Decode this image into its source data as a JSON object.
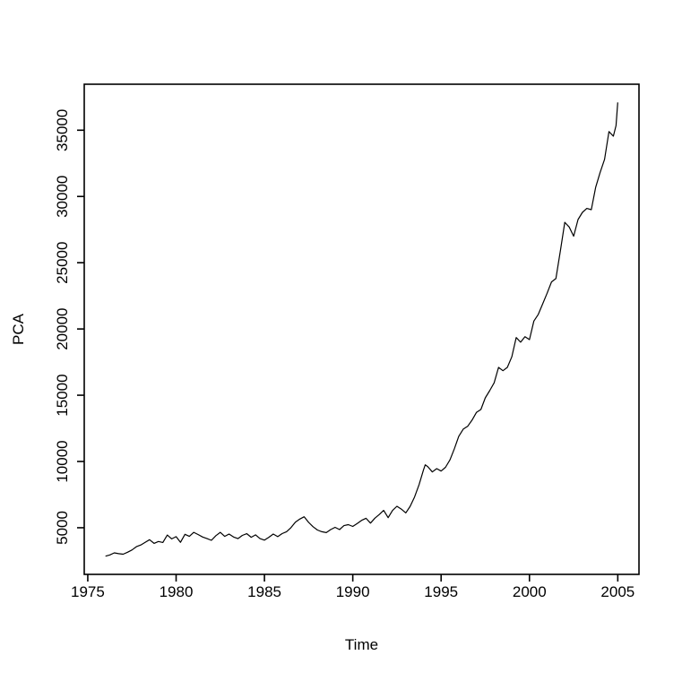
{
  "figure": {
    "background": "#ffffff",
    "line_color": "#000000",
    "axis_color": "#000000",
    "text_color": "#000000"
  },
  "chart_data": {
    "type": "line",
    "title": "",
    "xlabel": "Time",
    "ylabel": "PCA",
    "xlim": [
      1974.8,
      2006.2
    ],
    "ylim": [
      1480,
      38470
    ],
    "xticks": [
      1975,
      1980,
      1985,
      1990,
      1995,
      2000,
      2005
    ],
    "yticks": [
      5000,
      10000,
      15000,
      20000,
      25000,
      30000,
      35000
    ],
    "grid": false,
    "legend_position": "none",
    "series": [
      {
        "name": "PCA",
        "x": [
          1976.0,
          1976.25,
          1976.5,
          1976.75,
          1977.0,
          1977.25,
          1977.5,
          1977.75,
          1978.0,
          1978.25,
          1978.5,
          1978.75,
          1979.0,
          1979.25,
          1979.5,
          1979.75,
          1980.0,
          1980.25,
          1980.5,
          1980.75,
          1981.0,
          1981.25,
          1981.5,
          1981.75,
          1982.0,
          1982.25,
          1982.5,
          1982.75,
          1983.0,
          1983.25,
          1983.5,
          1983.75,
          1984.0,
          1984.25,
          1984.5,
          1984.75,
          1985.0,
          1985.25,
          1985.5,
          1985.75,
          1986.0,
          1986.25,
          1986.5,
          1986.75,
          1987.0,
          1987.25,
          1987.5,
          1987.75,
          1988.0,
          1988.25,
          1988.5,
          1988.75,
          1989.0,
          1989.25,
          1989.5,
          1989.75,
          1990.0,
          1990.25,
          1990.5,
          1990.75,
          1991.0,
          1991.25,
          1991.5,
          1991.75,
          1992.0,
          1992.25,
          1992.5,
          1992.75,
          1993.0,
          1993.25,
          1993.5,
          1993.75,
          1994.0,
          1994.1,
          1994.25,
          1994.5,
          1994.75,
          1995.0,
          1995.25,
          1995.5,
          1995.75,
          1996.0,
          1996.25,
          1996.5,
          1996.75,
          1997.0,
          1997.25,
          1997.5,
          1997.75,
          1998.0,
          1998.25,
          1998.5,
          1998.75,
          1999.0,
          1999.25,
          1999.5,
          1999.75,
          2000.0,
          2000.25,
          2000.5,
          2000.75,
          2001.0,
          2001.25,
          2001.5,
          2001.75,
          2002.0,
          2002.25,
          2002.5,
          2002.75,
          2003.0,
          2003.25,
          2003.5,
          2003.75,
          2004.0,
          2004.25,
          2004.5,
          2004.75,
          2004.9,
          2005.0
        ],
        "y": [
          2850,
          2950,
          3100,
          3040,
          3000,
          3150,
          3320,
          3570,
          3700,
          3900,
          4100,
          3820,
          3960,
          3890,
          4450,
          4160,
          4330,
          3900,
          4500,
          4350,
          4650,
          4480,
          4300,
          4180,
          4050,
          4400,
          4650,
          4350,
          4520,
          4300,
          4180,
          4420,
          4550,
          4280,
          4460,
          4180,
          4060,
          4280,
          4520,
          4330,
          4560,
          4700,
          5000,
          5420,
          5650,
          5830,
          5400,
          5080,
          4830,
          4700,
          4630,
          4860,
          5030,
          4860,
          5160,
          5230,
          5100,
          5320,
          5560,
          5710,
          5350,
          5720,
          6000,
          6310,
          5760,
          6300,
          6620,
          6400,
          6120,
          6620,
          7320,
          8250,
          9350,
          9750,
          9600,
          9210,
          9460,
          9280,
          9560,
          10120,
          10960,
          11900,
          12440,
          12650,
          13120,
          13700,
          13920,
          14800,
          15340,
          15940,
          17100,
          16850,
          17100,
          17900,
          19350,
          19000,
          19420,
          19200,
          20600,
          21100,
          21900,
          22700,
          23550,
          23800,
          25900,
          28050,
          27700,
          27000,
          28260,
          28800,
          29100,
          29000,
          30700,
          31800,
          32800,
          34900,
          34550,
          35350,
          37100
        ]
      }
    ]
  }
}
